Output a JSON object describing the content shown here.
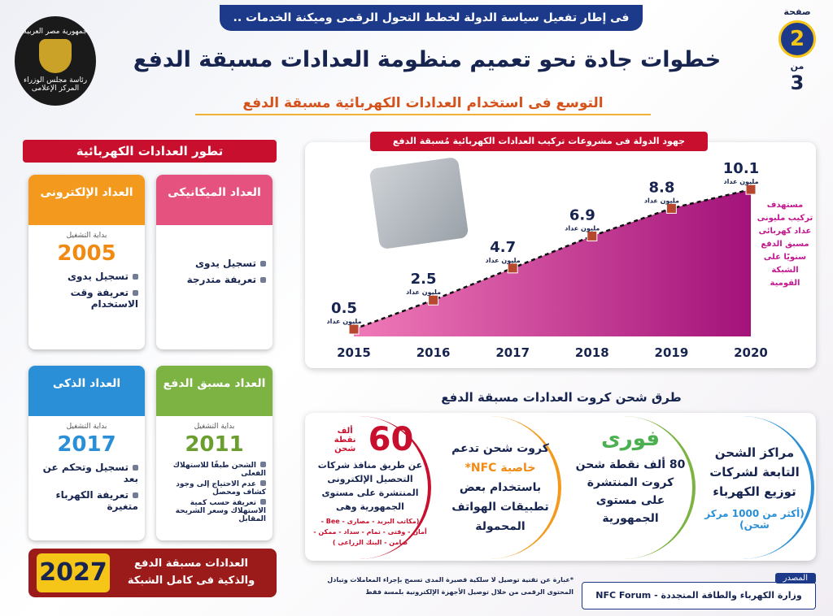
{
  "header": {
    "banner": "فى إطار تفعيل سياسة الدولة لخطط التحول الرقمى وميكنة الخدمات ..",
    "title": "خطوات جادة نحو تعميم منظومة العدادات مسبقة الدفع",
    "subtitle": "التوسع فى استخدام العدادات الكهربائية مسبقة الدفع",
    "page_label": "صفحة",
    "page_number": 2,
    "page_of_label": "من",
    "page_total": 3,
    "logo": [
      "جمهورية مصر العربية",
      "رئاسة مجلس الوزراء",
      "المركز الإعلامى"
    ]
  },
  "meters": {
    "title": "تطور العدادات الكهربائية",
    "cards": [
      {
        "name": "العداد الميكانيكى",
        "features": [
          "تسجيل يدوى",
          "تعريفة متدرجة"
        ]
      },
      {
        "name": "العداد الإلكترونى",
        "start_label": "بداية التشغيل",
        "year": 2005,
        "features": [
          "تسجيل يدوى",
          "تعريفة وقت الاستخدام"
        ]
      },
      {
        "name": "العداد مسبق الدفع",
        "start_label": "بداية التشغيل",
        "year": 2011,
        "features": [
          "الشحن طبقًا للاستهلاك الفعلى",
          "عدم الاحتياج إلى وجود كشاف ومحصل",
          "تعريفة حسب كمية الاستهلاك وسعر الشريحة المقابل"
        ]
      },
      {
        "name": "العداد الذكى",
        "start_label": "بداية التشغيل",
        "year": 2017,
        "features": [
          "تسجيل وتحكم عن بعد",
          "تعريفة الكهرباء متغيرة"
        ]
      }
    ],
    "future": {
      "year": 2027,
      "text": "العدادات مسبقة الدفع والذكية فى كامل الشبكة"
    }
  },
  "chart_data": {
    "type": "area",
    "title": "جهود الدولة فى مشروعات تركيب العدادات الكهربائية مُسبقة الدفع",
    "categories": [
      "2015",
      "2016",
      "2017",
      "2018",
      "2019",
      "2020"
    ],
    "values": [
      0.5,
      2.5,
      4.7,
      6.9,
      8.8,
      10.1
    ],
    "unit_label": "مليون عداد",
    "color": "#c2188f",
    "ylim": [
      0,
      11
    ],
    "note": "مستهدف تركيب مليونى عداد كهربائى مسبق الدفع سنويًا على الشبكة القومية"
  },
  "charging": {
    "title": "طرق شحن كروت العدادات مسبقة الدفع",
    "methods": [
      {
        "text": "مراكز الشحن التابعة لشركات توزيع الكهرباء",
        "note": "(أكثر من 1000 مركز شحن)"
      },
      {
        "title": "فورى",
        "text": "80 ألف نقطة شحن كروت المنتشرة على مستوى الجمهورية"
      },
      {
        "text": "كروت شحن تدعم",
        "highlight": "خاصية NFC*",
        "text2": "باستخدام بعض تطبيقات الهواتف المحمولة"
      },
      {
        "number": 60,
        "unit": "ألف نقطة شحن",
        "text": "عن طريق منافذ شركات التحصيل الإلكترونى المنتشرة على مستوى الجمهورية وهى",
        "list": "(مكاتب البريد - مصارى - Bee - أمان - وقتى - تمام - سداد - ممكن - ضامن - البنك الزراعى )"
      }
    ]
  },
  "footnote": "*عبارة عن تقنية توصيل لا سلكية قصيرة المدى تسمح بإجراء المعاملات وتبادل المحتوى الرقمى من خلال توصيل الأجهزة الإلكترونية بلمسة فقط",
  "source": {
    "label": "المصدر",
    "text": "وزارة الكهرباء والطاقة المتجددة - NFC Forum"
  }
}
